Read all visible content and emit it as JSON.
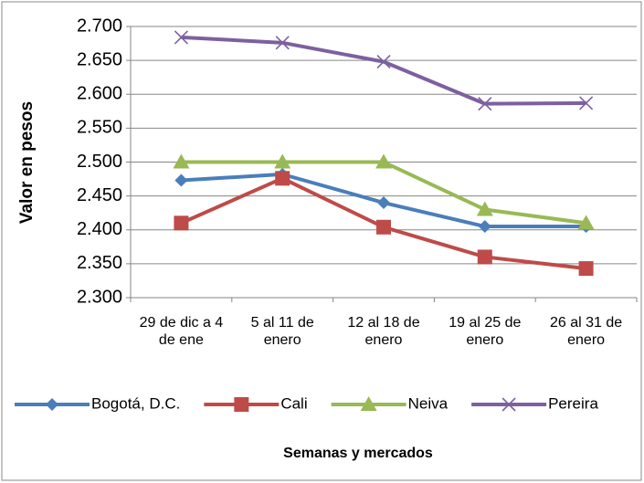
{
  "chart_data": {
    "type": "line",
    "x_label": "Semanas y mercados",
    "y_label": "Valor en pesos",
    "categories": [
      "29 de dic a 4 de ene",
      "5 al 11 de enero",
      "12 al 18 de enero",
      "19 al 25 de enero",
      "26 al 31 de enero"
    ],
    "series": [
      {
        "name": "Bogotá, D.C.",
        "color": "#4a7ebb",
        "marker": "diamond",
        "values": [
          2473,
          2482,
          2440,
          2405,
          2405
        ]
      },
      {
        "name": "Cali",
        "color": "#be4b48",
        "marker": "square",
        "values": [
          2410,
          2476,
          2404,
          2360,
          2343
        ]
      },
      {
        "name": "Neiva",
        "color": "#98b954",
        "marker": "triangle",
        "values": [
          2500,
          2500,
          2500,
          2430,
          2410
        ]
      },
      {
        "name": "Pereira",
        "color": "#7d60a0",
        "marker": "x",
        "values": [
          2684,
          2676,
          2648,
          2586,
          2587
        ]
      }
    ],
    "ylim": [
      2300,
      2700
    ],
    "yticks": [
      {
        "value": 2300,
        "label": "2.300"
      },
      {
        "value": 2350,
        "label": "2.350"
      },
      {
        "value": 2400,
        "label": "2.400"
      },
      {
        "value": 2450,
        "label": "2.450"
      },
      {
        "value": 2500,
        "label": "2.500"
      },
      {
        "value": 2550,
        "label": "2.550"
      },
      {
        "value": 2600,
        "label": "2.600"
      },
      {
        "value": 2650,
        "label": "2.650"
      },
      {
        "value": 2700,
        "label": "2.700"
      }
    ],
    "grid": true,
    "legend": "bottom"
  }
}
